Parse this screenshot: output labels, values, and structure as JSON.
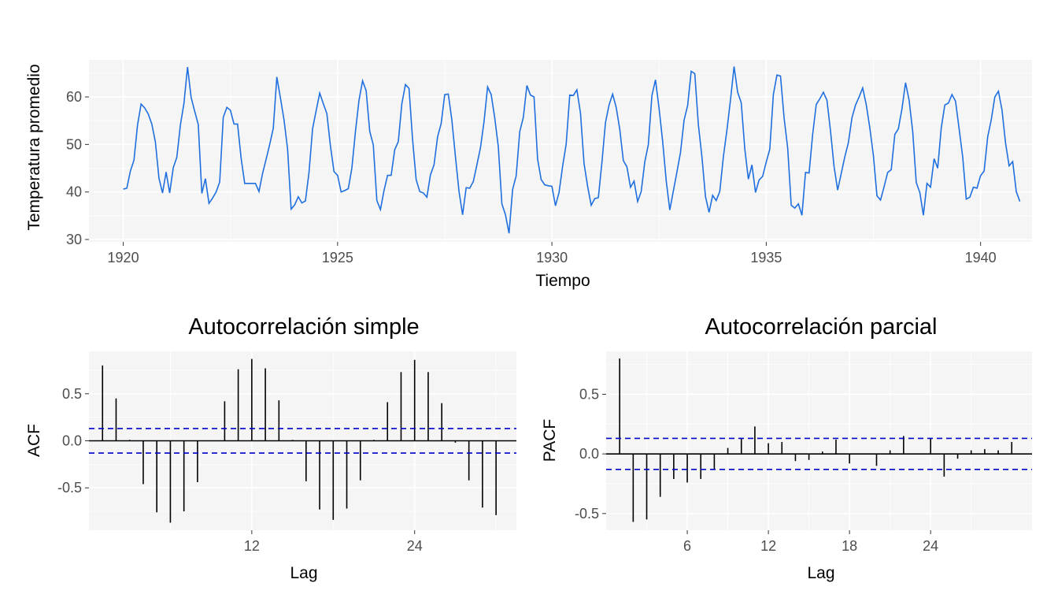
{
  "chart_data": [
    {
      "type": "line",
      "title": "",
      "xlabel": "Tiempo",
      "ylabel": "Temperatura promedio",
      "xlim": [
        1919.2,
        1941.2
      ],
      "ylim": [
        29.5,
        67.8
      ],
      "x_ticks": [
        1920,
        1925,
        1930,
        1935,
        1940
      ],
      "x_tick_labels": [
        "1920",
        "1925",
        "1930",
        "1935",
        "1940"
      ],
      "y_ticks": [
        30,
        40,
        50,
        60
      ],
      "y_tick_labels": [
        "30",
        "40",
        "50",
        "60"
      ],
      "grid": true,
      "line_color": "#1f6fdf",
      "x_start": 1920.0,
      "x_step": 0.08333,
      "series": [
        {
          "values": [
            40.6,
            40.8,
            44.4,
            46.7,
            54.1,
            58.5,
            57.7,
            56.4,
            54.3,
            50.5,
            42.9,
            39.8,
            44.2,
            39.8,
            45.1,
            47.3,
            54.1,
            58.7,
            66.3,
            59.9,
            57.0,
            54.2,
            39.7,
            42.8,
            37.6,
            38.7,
            40.0,
            42.1,
            55.7,
            57.8,
            57.2,
            54.3,
            54.3,
            47.1,
            41.8,
            41.8,
            41.8,
            41.8,
            40.1,
            43.9,
            46.9,
            50.0,
            53.4,
            64.2,
            59.8,
            55.2,
            49.1,
            36.4,
            37.3,
            39.0,
            37.7,
            38.1,
            44.1,
            53.3,
            57.1,
            60.8,
            58.6,
            56.5,
            49.7,
            44.3,
            43.5,
            40.0,
            40.3,
            40.7,
            45.0,
            52.7,
            59.3,
            63.4,
            61.3,
            52.8,
            49.9,
            38.2,
            36.3,
            40.3,
            43.5,
            43.5,
            48.9,
            50.6,
            58.6,
            62.6,
            61.8,
            51.0,
            42.6,
            40.1,
            39.8,
            38.9,
            43.6,
            45.7,
            51.6,
            54.4,
            60.5,
            60.6,
            55.1,
            47.4,
            40.1,
            35.2,
            40.9,
            40.8,
            42.2,
            45.7,
            49.3,
            54.8,
            62.1,
            60.5,
            55.6,
            49.5,
            37.5,
            35.2,
            31.3,
            40.5,
            43.4,
            52.7,
            55.7,
            62.4,
            60.4,
            60.0,
            46.9,
            42.6,
            41.5,
            41.3,
            41.2,
            37.1,
            39.9,
            45.4,
            50.1,
            60.4,
            60.3,
            61.5,
            56.6,
            46.0,
            41.2,
            37.2,
            38.6,
            38.8,
            46.2,
            54.6,
            58.3,
            60.6,
            57.8,
            53.2,
            46.6,
            45.3,
            41.0,
            42.3,
            38.0,
            40.1,
            46.3,
            50.0,
            60.3,
            63.6,
            57.6,
            50.7,
            42.4,
            36.2,
            40.2,
            44.2,
            48.3,
            55.1,
            58.2,
            65.4,
            64.9,
            54.2,
            47.4,
            39.0,
            35.7,
            39.3,
            38.2,
            40.1,
            47.4,
            53.0,
            59.4,
            66.4,
            61.0,
            58.8,
            49.1,
            42.7,
            45.7,
            39.9,
            42.5,
            43.3,
            46.3,
            49.0,
            60.5,
            64.6,
            64.4,
            55.6,
            49.3,
            37.2,
            36.6,
            37.5,
            35.1,
            44.1,
            44.0,
            52.1,
            58.4,
            59.6,
            61.0,
            59.3,
            52.8,
            45.3,
            40.4,
            43.9,
            47.4,
            50.4,
            55.6,
            58.3,
            60.0,
            61.9,
            58.4,
            53.5,
            47.7,
            39.2,
            38.3,
            41.1,
            44.1,
            44.7,
            52.1,
            53.3,
            57.5,
            63.0,
            59.3,
            52.8,
            42.0,
            39.9,
            35.1,
            41.8,
            41.0,
            47.0,
            45.0,
            53.5,
            58.3,
            58.7,
            60.5,
            59.1,
            53.3,
            47.4,
            38.5,
            38.9,
            41.0,
            40.8,
            43.4,
            44.4,
            51.6,
            55.2,
            60.0,
            61.2,
            57.3,
            50.3,
            45.5,
            46.4,
            40.1,
            38.0
          ]
        }
      ]
    },
    {
      "type": "bar",
      "title": "Autocorrelación simple",
      "xlabel": "Lag",
      "ylabel": "ACF",
      "xlim": [
        0,
        31.5
      ],
      "ylim": [
        -0.95,
        0.95
      ],
      "x_ticks": [
        12,
        24
      ],
      "x_tick_labels": [
        "12",
        "24"
      ],
      "y_ticks": [
        0.5,
        0.0,
        -0.5
      ],
      "y_tick_labels": [
        "0.5",
        "0.0",
        "-0.5"
      ],
      "grid": true,
      "ci_bound": 0.13,
      "ci_color": "#0000cc",
      "lags": [
        1,
        2,
        3,
        4,
        5,
        6,
        7,
        8,
        9,
        10,
        11,
        12,
        13,
        14,
        15,
        16,
        17,
        18,
        19,
        20,
        21,
        22,
        23,
        24,
        25,
        26,
        27,
        28,
        29,
        30
      ],
      "values": [
        0.8,
        0.45,
        0.01,
        -0.46,
        -0.76,
        -0.87,
        -0.75,
        -0.44,
        0.0,
        0.42,
        0.76,
        0.87,
        0.77,
        0.43,
        0.01,
        -0.43,
        -0.73,
        -0.84,
        -0.72,
        -0.42,
        0.01,
        0.41,
        0.73,
        0.86,
        0.73,
        0.4,
        -0.02,
        -0.42,
        -0.71,
        -0.79
      ]
    },
    {
      "type": "bar",
      "title": "Autocorrelación parcial",
      "xlabel": "Lag",
      "ylabel": "PACF",
      "xlim": [
        0,
        31.5
      ],
      "ylim": [
        -0.64,
        0.86
      ],
      "x_ticks": [
        6,
        12,
        18,
        24
      ],
      "x_tick_labels": [
        "6",
        "12",
        "18",
        "24"
      ],
      "y_ticks": [
        0.5,
        0.0,
        -0.5
      ],
      "y_tick_labels": [
        "0.5",
        "0.0",
        "-0.5"
      ],
      "grid": true,
      "ci_bound": 0.13,
      "ci_color": "#0000cc",
      "lags": [
        1,
        2,
        3,
        4,
        5,
        6,
        7,
        8,
        9,
        10,
        11,
        12,
        13,
        14,
        15,
        16,
        17,
        18,
        19,
        20,
        21,
        22,
        23,
        24,
        25,
        26,
        27,
        28,
        29,
        30
      ],
      "values": [
        0.8,
        -0.57,
        -0.55,
        -0.36,
        -0.21,
        -0.24,
        -0.21,
        -0.13,
        0.05,
        0.13,
        0.23,
        0.09,
        0.1,
        -0.06,
        -0.05,
        0.02,
        0.12,
        -0.08,
        0.0,
        -0.1,
        0.03,
        0.15,
        0.0,
        0.13,
        -0.19,
        -0.04,
        0.03,
        0.04,
        0.03,
        0.1
      ]
    }
  ]
}
